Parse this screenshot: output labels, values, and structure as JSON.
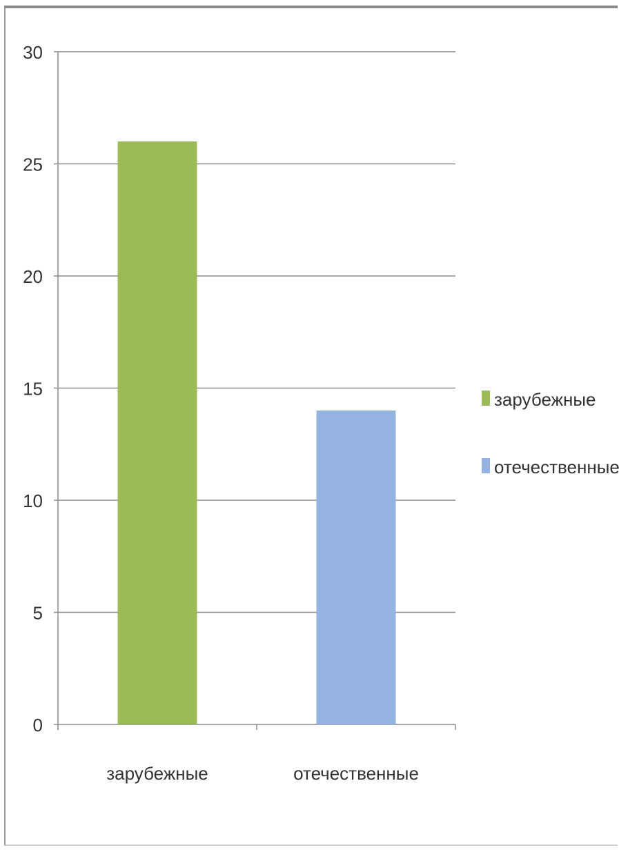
{
  "chart_data": {
    "type": "bar",
    "categories": [
      "зарубежные",
      "отечественные"
    ],
    "values": [
      26,
      14
    ],
    "colors": [
      "#9bbb59",
      "#95b3e1"
    ],
    "ylim": [
      0,
      30
    ],
    "yticks": [
      0,
      5,
      10,
      15,
      20,
      25,
      30
    ],
    "grid": true,
    "legend": {
      "placement": "right",
      "entries": [
        {
          "label": "зарубежные",
          "color": "#9bbb59"
        },
        {
          "label": "отечественные",
          "color": "#95b3e1"
        }
      ]
    },
    "title": "",
    "xlabel": "",
    "ylabel": ""
  }
}
